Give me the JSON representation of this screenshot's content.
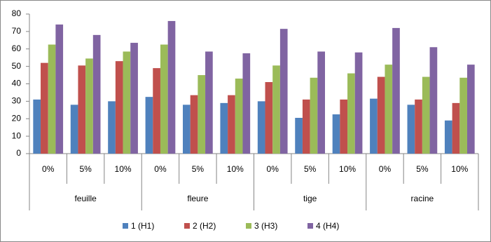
{
  "chart_data": {
    "type": "bar",
    "categories": [
      "0%",
      "5%",
      "10%",
      "0%",
      "5%",
      "10%",
      "0%",
      "5%",
      "10%",
      "0%",
      "5%",
      "10%"
    ],
    "category_groups": [
      "feuille",
      "fleure",
      "tige",
      "racine"
    ],
    "series": [
      {
        "name": "1 (H1)",
        "color": "#4f81bd",
        "values": [
          31,
          28,
          30,
          32.5,
          28,
          29,
          30,
          20.5,
          22.5,
          31.5,
          28,
          19
        ]
      },
      {
        "name": "2 (H2)",
        "color": "#c0504d",
        "values": [
          52,
          50.5,
          53,
          49,
          33.5,
          33.5,
          41,
          31,
          31,
          44,
          31,
          29
        ]
      },
      {
        "name": "3 (H3)",
        "color": "#9bbb59",
        "values": [
          62.5,
          54.5,
          58.5,
          62.5,
          45,
          43,
          50.5,
          43.5,
          46,
          51,
          44,
          43.5
        ]
      },
      {
        "name": "4 (H4)",
        "color": "#8064a2",
        "values": [
          74,
          68,
          63.5,
          76,
          58.5,
          57.5,
          71.5,
          58.5,
          58,
          72,
          61,
          51
        ]
      }
    ],
    "ylim": [
      0,
      80
    ],
    "yticks": [
      0,
      10,
      20,
      30,
      40,
      50,
      60,
      70,
      80
    ],
    "grid": false,
    "legend": "bottom"
  }
}
